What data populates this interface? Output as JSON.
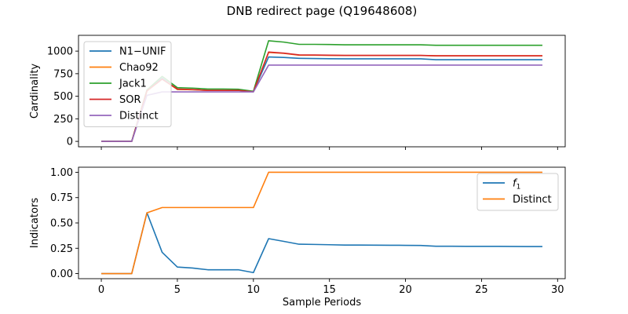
{
  "chart_data": [
    {
      "type": "line",
      "title": "DNB redirect page (Q19648608)",
      "ylabel": "Cardinality",
      "xlabel": "",
      "xlim": [
        -1.5,
        30.5
      ],
      "ylim": [
        -60,
        1175
      ],
      "xticks": [
        0,
        5,
        10,
        15,
        20,
        25,
        30
      ],
      "xtick_labels_visible": false,
      "yticks": [
        0,
        250,
        500,
        750,
        1000
      ],
      "legend_position": "upper-left",
      "x": [
        0,
        1,
        2,
        3,
        4,
        5,
        6,
        7,
        8,
        9,
        10,
        11,
        12,
        13,
        14,
        15,
        16,
        17,
        18,
        19,
        20,
        21,
        22,
        23,
        24,
        25,
        26,
        27,
        28,
        29
      ],
      "series": [
        {
          "name": "N1−UNIF",
          "color": "#1f77b4",
          "values": [
            0,
            0,
            0,
            560,
            700,
            575,
            572,
            565,
            565,
            565,
            550,
            935,
            930,
            920,
            918,
            916,
            915,
            915,
            915,
            915,
            915,
            915,
            905,
            905,
            905,
            905,
            905,
            905,
            905,
            905
          ]
        },
        {
          "name": "Chao92",
          "color": "#ff7f0e",
          "values": [
            0,
            0,
            0,
            560,
            690,
            575,
            572,
            565,
            565,
            565,
            550,
            985,
            975,
            955,
            955,
            953,
            952,
            952,
            952,
            952,
            952,
            952,
            948,
            948,
            948,
            948,
            948,
            948,
            948,
            948
          ]
        },
        {
          "name": "Jack1",
          "color": "#2ca02c",
          "values": [
            0,
            0,
            0,
            570,
            720,
            595,
            590,
            580,
            580,
            578,
            555,
            1115,
            1100,
            1075,
            1075,
            1073,
            1070,
            1070,
            1070,
            1070,
            1070,
            1070,
            1065,
            1065,
            1065,
            1065,
            1065,
            1065,
            1065,
            1065
          ]
        },
        {
          "name": "SOR",
          "color": "#d62728",
          "values": [
            0,
            0,
            0,
            560,
            690,
            580,
            575,
            565,
            565,
            565,
            550,
            990,
            978,
            958,
            957,
            955,
            953,
            953,
            953,
            953,
            953,
            953,
            948,
            948,
            948,
            948,
            948,
            948,
            948,
            948
          ]
        },
        {
          "name": "Distinct",
          "color": "#9467bd",
          "values": [
            0,
            0,
            0,
            510,
            548,
            548,
            548,
            548,
            548,
            548,
            548,
            845,
            845,
            845,
            845,
            845,
            845,
            845,
            845,
            845,
            845,
            845,
            845,
            845,
            845,
            845,
            845,
            845,
            845,
            845
          ]
        }
      ]
    },
    {
      "type": "line",
      "title": "",
      "xlabel": "Sample Periods",
      "ylabel": "Indicators",
      "xlim": [
        -1.5,
        30.5
      ],
      "ylim": [
        -0.05,
        1.05
      ],
      "xticks": [
        0,
        5,
        10,
        15,
        20,
        25,
        30
      ],
      "yticks": [
        0.0,
        0.25,
        0.5,
        0.75,
        1.0
      ],
      "ytick_labels": [
        "0.00",
        "0.25",
        "0.50",
        "0.75",
        "1.00"
      ],
      "legend_position": "upper-right",
      "x": [
        0,
        1,
        2,
        3,
        4,
        5,
        6,
        7,
        8,
        9,
        10,
        11,
        12,
        13,
        14,
        15,
        16,
        17,
        18,
        19,
        20,
        21,
        22,
        23,
        24,
        25,
        26,
        27,
        28,
        29
      ],
      "series": [
        {
          "name": "f1",
          "color": "#1f77b4",
          "values": [
            0,
            0,
            0,
            0.6,
            0.21,
            0.065,
            0.055,
            0.038,
            0.038,
            0.038,
            0.01,
            0.345,
            0.318,
            0.29,
            0.288,
            0.285,
            0.282,
            0.282,
            0.281,
            0.28,
            0.279,
            0.278,
            0.27,
            0.27,
            0.269,
            0.269,
            0.269,
            0.268,
            0.267,
            0.267
          ]
        },
        {
          "name": "Distinct",
          "color": "#ff7f0e",
          "values": [
            0,
            0,
            0,
            0.6,
            0.652,
            0.652,
            0.652,
            0.652,
            0.652,
            0.652,
            0.652,
            1,
            1,
            1,
            1,
            1,
            1,
            1,
            1,
            1,
            1,
            1,
            1,
            1,
            1,
            1,
            1,
            1,
            1,
            1
          ]
        }
      ]
    }
  ]
}
